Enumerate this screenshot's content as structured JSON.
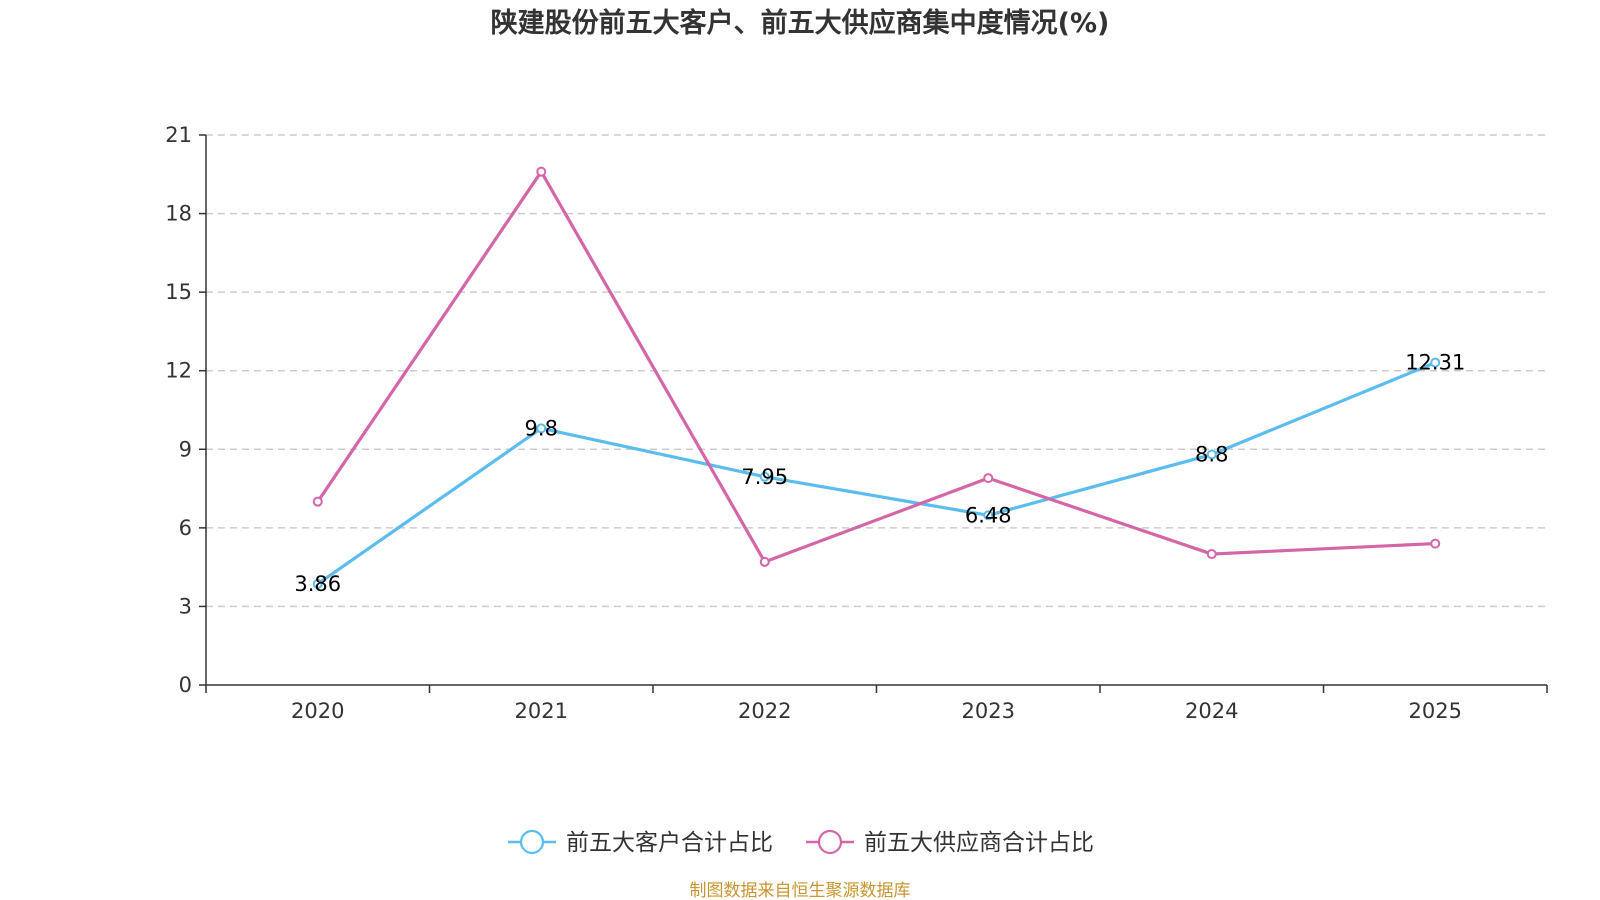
{
  "chart_data": {
    "type": "line",
    "title": "陕建股份前五大客户、前五大供应商集中度情况(%)",
    "categories": [
      "2020",
      "2021",
      "2022",
      "2023",
      "2024",
      "2025"
    ],
    "ylim": [
      0,
      21
    ],
    "yticks": [
      0,
      3,
      6,
      9,
      12,
      15,
      18,
      21
    ],
    "grid": true,
    "legend_position": "bottom-center",
    "series": [
      {
        "name": "前五大客户合计占比",
        "color": "#5bbcf0",
        "values": [
          3.86,
          9.8,
          7.95,
          6.48,
          8.8,
          12.31
        ],
        "labels": [
          "3.86",
          "9.8",
          "7.95",
          "6.48",
          "8.8",
          "12.31"
        ]
      },
      {
        "name": "前五大供应商合计占比",
        "color": "#d466a8",
        "values": [
          7.0,
          19.6,
          4.7,
          7.9,
          5.0,
          5.4
        ]
      }
    ],
    "source": "制图数据来自恒生聚源数据库"
  }
}
